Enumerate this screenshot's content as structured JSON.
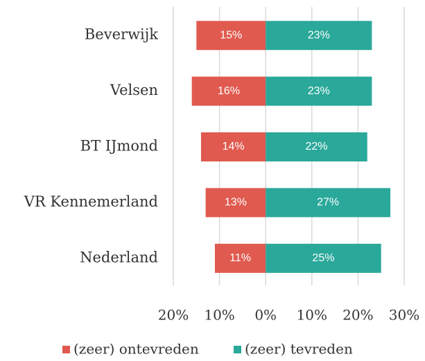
{
  "chart_data": {
    "type": "diverging_bar",
    "categories": [
      "Beverwijk",
      "Velsen",
      "BT IJmond",
      "VR Kennemerland",
      "Nederland"
    ],
    "series": [
      {
        "name": "(zeer) ontevreden",
        "color": "#e05a4f",
        "values": [
          -15,
          -16,
          -14,
          -13,
          -11
        ],
        "value_labels": [
          "15%",
          "16%",
          "14%",
          "13%",
          "11%"
        ]
      },
      {
        "name": "(zeer) tevreden",
        "color": "#2aa89a",
        "values": [
          23,
          23,
          22,
          27,
          25
        ],
        "value_labels": [
          "23%",
          "23%",
          "22%",
          "27%",
          "25%"
        ]
      }
    ],
    "xlim": [
      -20,
      30
    ],
    "xticks": [
      {
        "value": -20,
        "label": "20%"
      },
      {
        "value": -10,
        "label": "10%"
      },
      {
        "value": 0,
        "label": "0%"
      },
      {
        "value": 10,
        "label": "10%"
      },
      {
        "value": 20,
        "label": "20%"
      },
      {
        "value": 30,
        "label": "30%"
      }
    ],
    "grid": true
  }
}
